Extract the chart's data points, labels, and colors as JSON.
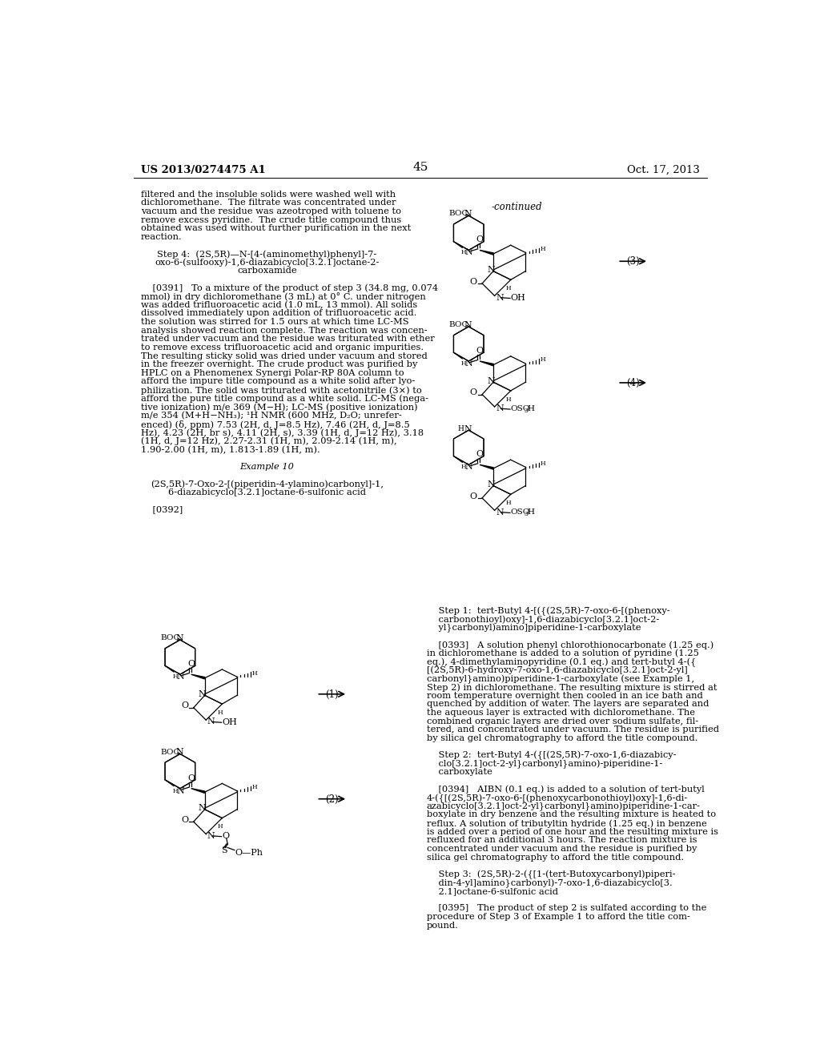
{
  "background_color": "#ffffff",
  "page_number": "45",
  "header_left": "US 2013/0274475 A1",
  "header_right": "Oct. 17, 2013",
  "continued_label": "-continued",
  "left_col_lines": [
    "filtered and the insoluble solids were washed well with",
    "dichloromethane.  The filtrate was concentrated under",
    "vacuum and the residue was azeotroped with toluene to",
    "remove excess pyridine.  The crude title compound thus",
    "obtained was used without further purification in the next",
    "reaction.",
    " ",
    "    Step 4:  (2S,5R)—N-[4-(aminomethyl)phenyl]-7-",
    "    oxo-6-(sulfooxy)-1,6-diazabicyclo[3.2.1]octane-2-",
    "    carboxamide",
    " ",
    "    [0391]   To a mixture of the product of step 3 (34.8 mg, 0.074",
    "mmol) in dry dichloromethane (3 mL) at 0° C. under nitrogen",
    "was added trifluoroacetic acid (1.0 mL, 13 mmol). All solids",
    "dissolved immediately upon addition of trifluoroacetic acid.",
    "the solution was stirred for 1.5 ours at which time LC-MS",
    "analysis showed reaction complete. The reaction was concen-",
    "trated under vacuum and the residue was triturated with ether",
    "to remove excess trifluoroacetic acid and organic impurities.",
    "The resulting sticky solid was dried under vacuum and stored",
    "in the freezer overnight. The crude product was purified by",
    "HPLC on a Phenomenex Synergi Polar-RP 80A column to",
    "afford the impure title compound as a white solid after lyo-",
    "philization. The solid was triturated with acetonitrile (3×) to",
    "afford the pure title compound as a white solid. LC-MS (nega-",
    "tive ionization) m/e 369 (M−H); LC-MS (positive ionization)",
    "m/e 354 (M+H−NH₃); ¹H NMR (600 MHz, D₂O; unrefer-",
    "enced) (δ, ppm) 7.53 (2H, d, J=8.5 Hz), 7.46 (2H, d, J=8.5",
    "Hz), 4.23 (2H, br s), 4.11 (2H, s), 3.39 (1H, d, J=12 Hz), 3.18",
    "(1H, d, J=12 Hz), 2.27-2.31 (1H, m), 2.09-2.14 (1H, m),",
    "1.90-2.00 (1H, m), 1.813-1.89 (1H, m).",
    " ",
    "    Example 10",
    " ",
    "    (2S,5R)-7-Oxo-2-[(piperidin-4-ylamino)carbonyl]-1,",
    "    6-diazabicyclo[3.2.1]octane-6-sulfonic acid",
    " ",
    "    [0392]"
  ],
  "right_col_lines": [
    "    Step 1:  tert-Butyl 4-[({(2S,5R)-7-oxo-6-[(phenoxy-",
    "    carbonothioyl)oxy]-1,6-diazabicyclo[3.2.1]oct-2-",
    "    yl}carbonyl)amino]piperidine-1-carboxylate",
    " ",
    "    [0393]   A solution phenyl chlorothionocarbonate (1.25 eq.)",
    "in dichloromethane is added to a solution of pyridine (1.25",
    "eq.), 4-dimethylaminopyridine (0.1 eq.) and tert-butyl 4-({",
    "[(2S,5R)-6-hydroxy-7-oxo-1,6-diazabicyclo[3.2.1]oct-2-yl]",
    "carbonyl}amino)piperidine-1-carboxylate (see Example 1,",
    "Step 2) in dichloromethane. The resulting mixture is stirred at",
    "room temperature overnight then cooled in an ice bath and",
    "quenched by addition of water. The layers are separated and",
    "the aqueous layer is extracted with dichloromethane. The",
    "combined organic layers are dried over sodium sulfate, fil-",
    "tered, and concentrated under vacuum. The residue is purified",
    "by silica gel chromatography to afford the title compound.",
    " ",
    "    Step 2:  tert-Butyl 4-({[(2S,5R)-7-oxo-1,6-diazabicy-",
    "    clo[3.2.1]oct-2-yl}carbonyl}amino)-piperidine-1-",
    "    carboxylate",
    " ",
    "    [0394]   AIBN (0.1 eq.) is added to a solution of tert-butyl",
    "4-({[(2S,5R)-7-oxo-6-[(phenoxycarbonothioyl)oxy]-1,6-di-",
    "azabicyclo[3.2.1]oct-2-yl}carbonyl}amino)piperidine-1-car-",
    "boxylate in dry benzene and the resulting mixture is heated to",
    "reflux. A solution of tributyltin hydride (1.25 eq.) in benzene",
    "is added over a period of one hour and the resulting mixture is",
    "refluxed for an additional 3 hours. The reaction mixture is",
    "concentrated under vacuum and the residue is purified by",
    "silica gel chromatography to afford the title compound.",
    " ",
    "    Step 3:  (2S,5R)-2-({[1-(tert-Butoxycarbonyl)piperi-",
    "    din-4-yl]amino}carbonyl)-7-oxo-1,6-diazabicyclo[3.",
    "    2.1]octane-6-sulfonic acid",
    " ",
    "    [0395]   The product of step 2 is sulfated according to the",
    "procedure of Step 3 of Example 1 to afford the title com-",
    "pound."
  ]
}
